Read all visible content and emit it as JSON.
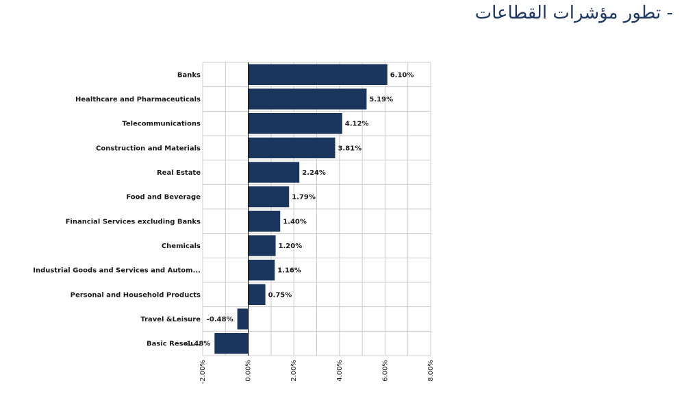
{
  "page": {
    "title": "- تطور مؤشرات القطاعات"
  },
  "chart_data": {
    "type": "bar",
    "orientation": "horizontal",
    "title": "",
    "xlabel": "",
    "ylabel": "",
    "categories": [
      "Banks",
      "Healthcare and Pharmaceuticals",
      "Telecommunications",
      "Construction and Materials",
      "Real Estate",
      "Food and Beverage",
      "Financial Services excluding Banks",
      "Chemicals",
      "Industrial Goods and Services and Autom...",
      "Personal and Household Products",
      "Travel &Leisure",
      "Basic Resou..."
    ],
    "values": [
      6.1,
      5.19,
      4.12,
      3.81,
      2.24,
      1.79,
      1.4,
      1.2,
      1.16,
      0.75,
      -0.48,
      -1.48
    ],
    "value_labels": [
      "6.10%",
      "5.19%",
      "4.12%",
      "3.81%",
      "2.24%",
      "1.79%",
      "1.40%",
      "1.20%",
      "1.16%",
      "0.75%",
      "-0.48%",
      "-1.48%"
    ],
    "xlim": [
      -2.0,
      8.0
    ],
    "x_ticks": [
      -2,
      0,
      2,
      4,
      6,
      8
    ],
    "x_tick_labels": [
      "-2.00%",
      "0.00%",
      "2.00%",
      "4.00%",
      "6.00%",
      "8.00%"
    ],
    "grid": true,
    "bar_color": "#1b365d",
    "grid_color": "#cccccc"
  }
}
